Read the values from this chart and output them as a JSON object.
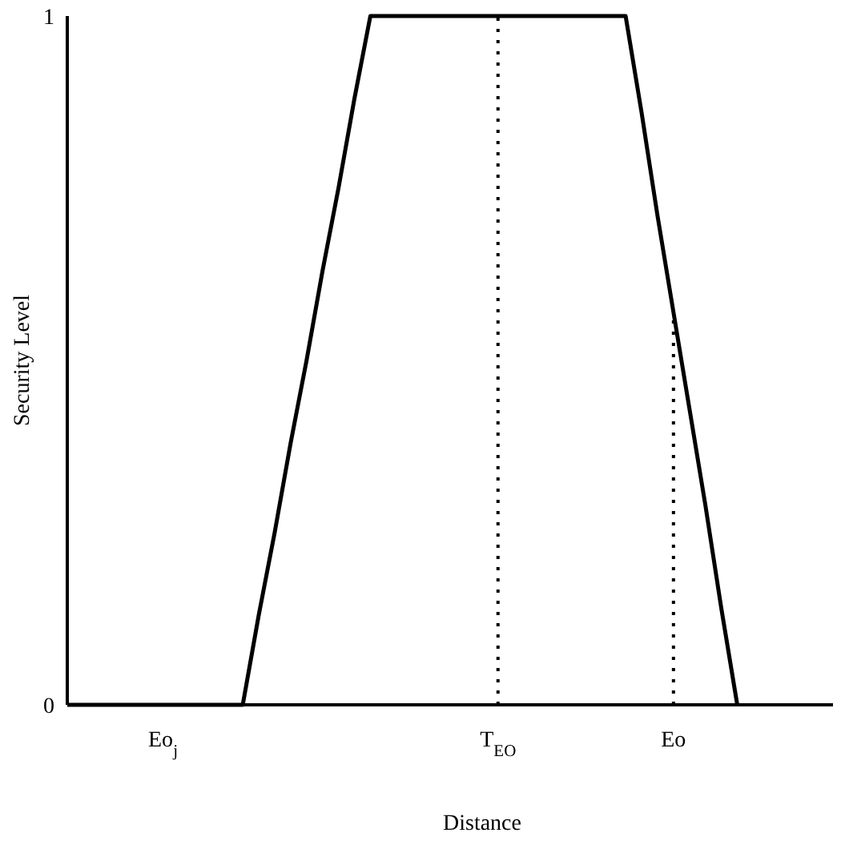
{
  "chart_data": {
    "type": "line",
    "xlabel": "Distance",
    "ylabel": "Security Level",
    "categories": [
      null,
      null,
      null,
      null,
      null,
      null,
      "Eo$_{j}$",
      null,
      null,
      null,
      null,
      null,
      null,
      null,
      null,
      null,
      null,
      null,
      null,
      null,
      null,
      null,
      null,
      null,
      null,
      null,
      null,
      "T$_{EO}$",
      null,
      null,
      null,
      null,
      null,
      null,
      null,
      null,
      null,
      null,
      "Eo",
      null,
      null,
      null,
      null,
      null,
      null,
      null,
      null,
      null,
      null
    ],
    "ylim": [
      0,
      1
    ],
    "yticks": [
      0,
      1
    ],
    "series": [
      {
        "color": "#000000",
        "values": [
          0,
          0,
          0,
          0,
          0,
          0,
          0,
          0,
          0,
          0,
          0,
          0,
          0.13,
          0.25,
          0.38,
          0.5,
          0.63,
          0.75,
          0.88,
          1,
          1,
          1,
          1,
          1,
          1,
          1,
          1,
          1,
          1,
          1,
          1,
          1,
          1,
          1,
          1,
          1,
          0.86,
          0.71,
          0.57,
          0.43,
          0.29,
          0.14,
          0,
          null,
          null,
          null,
          null,
          null,
          null
        ]
      }
    ],
    "ref_lines": [
      {
        "axis": "x",
        "value": "T$_{EO}$",
        "color": "#000000",
        "line_style": "dotted"
      },
      {
        "axis": "x",
        "value": "Eo",
        "color": "#000000",
        "line_style": "dotted"
      }
    ],
    "grid": false,
    "marker": "none",
    "line_style": "solid"
  }
}
